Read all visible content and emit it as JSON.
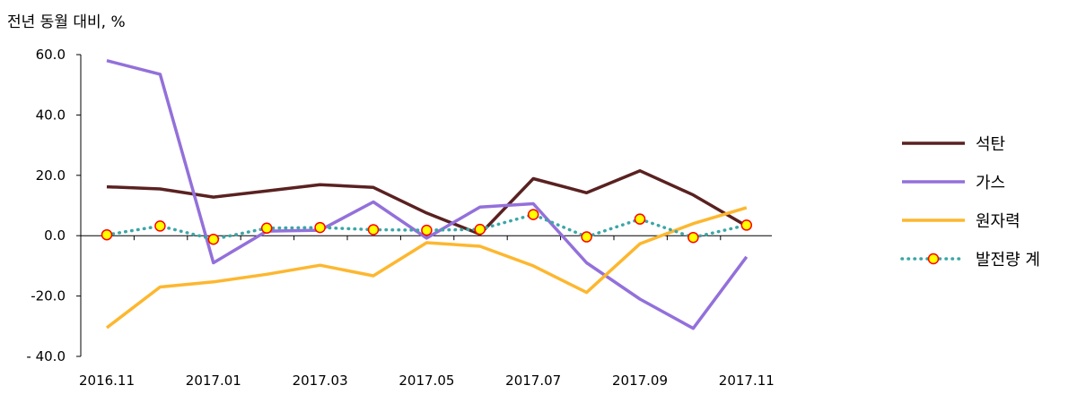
{
  "chart_data": {
    "type": "line",
    "ylabel": "전년 동월 대비, %",
    "ylim": [
      -40,
      60
    ],
    "yticks": [
      "60.0",
      "40.0",
      "20.0",
      "0.0",
      "-20.0",
      "- 40.0"
    ],
    "ytick_values": [
      60,
      40,
      20,
      0,
      -20,
      -40
    ],
    "x": [
      "2016.11",
      "2016.12",
      "2017.01",
      "2017.02",
      "2017.03",
      "2017.04",
      "2017.05",
      "2017.06",
      "2017.07",
      "2017.08",
      "2017.09",
      "2017.10",
      "2017.11"
    ],
    "xtick_labels": [
      "2016.11",
      "2017.01",
      "2017.03",
      "2017.05",
      "2017.07",
      "2017.09",
      "2017.11"
    ],
    "legend_position": "right",
    "series": [
      {
        "name": "석탄",
        "color": "#5a2121",
        "style": "solid",
        "values": [
          16.2,
          15.5,
          12.8,
          14.8,
          16.9,
          16.0,
          7.5,
          0.5,
          18.9,
          14.2,
          21.5,
          13.5,
          3.2
        ]
      },
      {
        "name": "가스",
        "color": "#9370db",
        "style": "solid",
        "values": [
          58.0,
          53.5,
          -9.0,
          1.5,
          1.8,
          11.2,
          -0.8,
          9.5,
          10.6,
          -9.0,
          -21.0,
          -30.7,
          -7.0
        ]
      },
      {
        "name": "원자력",
        "color": "#fdb72f",
        "style": "solid",
        "values": [
          -30.5,
          -17.0,
          -15.3,
          -12.8,
          -9.8,
          -13.3,
          -2.3,
          -3.5,
          -10.0,
          -18.8,
          -2.7,
          4.0,
          9.3
        ]
      },
      {
        "name": "발전량 계",
        "color": "#3ca6a6",
        "style": "dotted",
        "marker": "circle",
        "marker_fill": "#ffff00",
        "marker_edge": "#ff0000",
        "values": [
          0.3,
          3.2,
          -1.2,
          2.5,
          2.7,
          2.0,
          1.8,
          2.1,
          7.0,
          -0.4,
          5.5,
          -0.6,
          3.5
        ]
      }
    ]
  }
}
